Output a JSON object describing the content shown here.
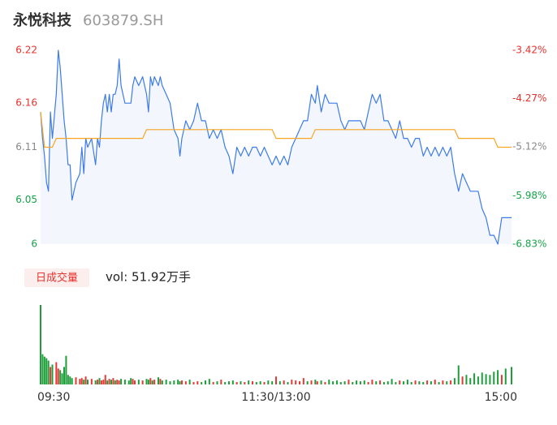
{
  "header": {
    "name": "永悦科技",
    "code": "603879.SH"
  },
  "chart_data": [
    {
      "type": "line",
      "x": [
        0,
        1,
        2,
        3,
        4,
        5,
        6,
        8,
        9,
        10,
        11,
        12,
        13,
        14,
        15,
        16,
        18,
        20,
        21,
        22,
        23,
        24,
        26,
        28,
        29,
        30,
        31,
        32,
        33,
        34,
        35,
        36,
        37,
        38,
        39,
        40,
        41,
        43,
        45,
        46,
        47,
        48,
        50,
        52,
        54,
        55,
        56,
        57,
        58,
        60,
        61,
        62,
        64,
        66,
        68,
        70,
        71,
        72,
        74,
        76,
        78,
        80,
        82,
        84,
        86,
        88,
        90,
        92,
        94,
        96,
        98,
        100,
        102,
        104,
        106,
        108,
        110,
        112,
        114,
        116,
        118,
        120,
        122,
        124,
        126,
        128,
        130,
        132,
        134,
        136,
        138,
        140,
        141,
        143,
        145,
        147,
        149,
        151,
        153,
        155,
        157,
        159,
        161,
        163,
        165,
        167,
        169,
        171,
        173,
        175,
        177,
        179,
        181,
        183,
        185,
        187,
        189,
        191,
        193,
        195,
        197,
        199,
        201,
        203,
        205,
        207,
        209,
        211,
        213,
        215,
        217,
        219,
        221,
        223,
        225,
        227,
        229,
        231,
        233,
        235,
        237,
        240
      ],
      "series": [
        {
          "color": "#3d7be8",
          "fill": "#f3f7fd",
          "values": [
            6.15,
            6.12,
            6.1,
            6.07,
            6.06,
            6.15,
            6.12,
            6.17,
            6.22,
            6.2,
            6.17,
            6.14,
            6.12,
            6.09,
            6.09,
            6.05,
            6.07,
            6.08,
            6.11,
            6.08,
            6.12,
            6.11,
            6.12,
            6.09,
            6.12,
            6.11,
            6.14,
            6.16,
            6.17,
            6.15,
            6.17,
            6.15,
            6.17,
            6.17,
            6.18,
            6.21,
            6.18,
            6.16,
            6.16,
            6.16,
            6.18,
            6.19,
            6.18,
            6.19,
            6.17,
            6.15,
            6.19,
            6.18,
            6.19,
            6.18,
            6.19,
            6.18,
            6.17,
            6.16,
            6.13,
            6.12,
            6.1,
            6.12,
            6.14,
            6.13,
            6.14,
            6.16,
            6.14,
            6.14,
            6.12,
            6.13,
            6.12,
            6.13,
            6.11,
            6.1,
            6.08,
            6.11,
            6.1,
            6.11,
            6.1,
            6.11,
            6.11,
            6.1,
            6.11,
            6.1,
            6.09,
            6.1,
            6.09,
            6.1,
            6.09,
            6.11,
            6.12,
            6.13,
            6.14,
            6.14,
            6.17,
            6.16,
            6.18,
            6.15,
            6.17,
            6.16,
            6.16,
            6.16,
            6.14,
            6.13,
            6.14,
            6.14,
            6.14,
            6.14,
            6.13,
            6.15,
            6.17,
            6.16,
            6.17,
            6.14,
            6.14,
            6.13,
            6.12,
            6.14,
            6.12,
            6.12,
            6.11,
            6.12,
            6.12,
            6.1,
            6.11,
            6.1,
            6.11,
            6.1,
            6.11,
            6.1,
            6.11,
            6.08,
            6.06,
            6.08,
            6.07,
            6.06,
            6.06,
            6.06,
            6.04,
            6.03,
            6.01,
            6.01,
            6.0,
            6.03,
            6.03,
            6.03
          ]
        },
        {
          "color": "#f5a623",
          "values": [
            6.15,
            6.13,
            6.11,
            6.11,
            6.11,
            6.11,
            6.11,
            6.12,
            6.12,
            6.12,
            6.12,
            6.12,
            6.12,
            6.12,
            6.12,
            6.12,
            6.12,
            6.12,
            6.12,
            6.12,
            6.12,
            6.12,
            6.12,
            6.12,
            6.12,
            6.12,
            6.12,
            6.12,
            6.12,
            6.12,
            6.12,
            6.12,
            6.12,
            6.12,
            6.12,
            6.12,
            6.12,
            6.12,
            6.12,
            6.12,
            6.12,
            6.12,
            6.12,
            6.12,
            6.13,
            6.13,
            6.13,
            6.13,
            6.13,
            6.13,
            6.13,
            6.13,
            6.13,
            6.13,
            6.13,
            6.13,
            6.13,
            6.13,
            6.13,
            6.13,
            6.13,
            6.13,
            6.13,
            6.13,
            6.13,
            6.13,
            6.13,
            6.13,
            6.13,
            6.13,
            6.13,
            6.13,
            6.13,
            6.13,
            6.13,
            6.13,
            6.13,
            6.13,
            6.13,
            6.13,
            6.13,
            6.12,
            6.12,
            6.12,
            6.12,
            6.12,
            6.12,
            6.12,
            6.12,
            6.12,
            6.12,
            6.13,
            6.13,
            6.13,
            6.13,
            6.13,
            6.13,
            6.13,
            6.13,
            6.13,
            6.13,
            6.13,
            6.13,
            6.13,
            6.13,
            6.13,
            6.13,
            6.13,
            6.13,
            6.13,
            6.13,
            6.13,
            6.13,
            6.13,
            6.13,
            6.13,
            6.13,
            6.13,
            6.13,
            6.13,
            6.13,
            6.13,
            6.13,
            6.13,
            6.13,
            6.13,
            6.13,
            6.13,
            6.12,
            6.12,
            6.12,
            6.12,
            6.12,
            6.12,
            6.12,
            6.12,
            6.12,
            6.12,
            6.11,
            6.11,
            6.11,
            6.11
          ]
        }
      ],
      "xlim": [
        0,
        240
      ],
      "ylim": [
        6.0,
        6.22
      ],
      "yticks": [
        6.22,
        6.16,
        6.11,
        6.05,
        6.0
      ],
      "ytick_colors": [
        "#e8322c",
        "#e8322c",
        "#888888",
        "#16a34a",
        "#16a34a"
      ],
      "y2lim": [
        -6.83,
        -3.42
      ],
      "y2ticks": [
        {
          "value": -3.42,
          "label": "-3.42%"
        },
        {
          "value": -4.27,
          "label": "-4.27%"
        },
        {
          "value": -5.12,
          "label": "-5.12%"
        },
        {
          "value": -5.98,
          "label": "-5.98%"
        },
        {
          "value": -6.83,
          "label": "-6.83%"
        }
      ],
      "y2tick_colors": [
        "#e8322c",
        "#e8322c",
        "#888888",
        "#16a34a",
        "#16a34a"
      ]
    },
    {
      "type": "bar",
      "title": "日成交量",
      "subtitle": "vol: 51.92万手",
      "x": [
        0,
        1,
        2,
        3,
        4,
        5,
        6,
        8,
        9,
        10,
        11,
        12,
        13,
        14,
        15,
        16,
        18,
        20,
        21,
        22,
        23,
        24,
        26,
        28,
        29,
        30,
        31,
        32,
        33,
        34,
        35,
        36,
        37,
        38,
        39,
        40,
        41,
        43,
        45,
        46,
        47,
        48,
        50,
        52,
        54,
        55,
        56,
        57,
        58,
        60,
        61,
        62,
        64,
        66,
        68,
        70,
        71,
        72,
        74,
        76,
        78,
        80,
        82,
        84,
        86,
        88,
        90,
        92,
        94,
        96,
        98,
        100,
        102,
        104,
        106,
        108,
        110,
        112,
        114,
        116,
        118,
        120,
        122,
        124,
        126,
        128,
        130,
        132,
        134,
        136,
        138,
        140,
        141,
        143,
        145,
        147,
        149,
        151,
        153,
        155,
        157,
        159,
        161,
        163,
        165,
        167,
        169,
        171,
        173,
        175,
        177,
        179,
        181,
        183,
        185,
        187,
        189,
        191,
        193,
        195,
        197,
        199,
        201,
        203,
        205,
        207,
        209,
        211,
        213,
        215,
        217,
        219,
        221,
        223,
        225,
        227,
        229,
        231,
        233,
        235,
        237,
        240
      ],
      "values": [
        100,
        38,
        35,
        33,
        30,
        22,
        25,
        28,
        20,
        18,
        14,
        22,
        36,
        12,
        10,
        8,
        9,
        7,
        8,
        6,
        10,
        6,
        7,
        5,
        6,
        8,
        5,
        6,
        12,
        5,
        7,
        6,
        8,
        5,
        6,
        5,
        7,
        6,
        5,
        8,
        7,
        5,
        6,
        5,
        7,
        6,
        8,
        5,
        6,
        9,
        7,
        5,
        6,
        4,
        5,
        6,
        4,
        5,
        4,
        6,
        3,
        4,
        3,
        5,
        7,
        3,
        4,
        6,
        3,
        4,
        5,
        3,
        4,
        3,
        5,
        4,
        3,
        4,
        3,
        5,
        4,
        10,
        4,
        5,
        3,
        6,
        5,
        4,
        8,
        4,
        5,
        6,
        4,
        5,
        3,
        6,
        4,
        5,
        3,
        4,
        6,
        3,
        5,
        4,
        5,
        3,
        6,
        4,
        5,
        3,
        4,
        7,
        3,
        5,
        4,
        6,
        3,
        5,
        4,
        3,
        5,
        4,
        6,
        3,
        5,
        4,
        5,
        8,
        24,
        10,
        12,
        8,
        14,
        10,
        15,
        13,
        12,
        16,
        18,
        12,
        20,
        22
      ],
      "up_color": "#e53935",
      "down_color": "#1e9e3a",
      "xlim": [
        0,
        240
      ],
      "ylim": [
        0,
        100
      ],
      "xticks": [
        {
          "value": 0,
          "label": "09:30"
        },
        {
          "value": 120,
          "label": "11:30/13:00"
        },
        {
          "value": 240,
          "label": "15:00"
        }
      ]
    }
  ]
}
